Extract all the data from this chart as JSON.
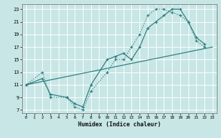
{
  "background_color": "#c8e6e6",
  "grid_color": "#ffffff",
  "line_color": "#2e7d7d",
  "xlabel": "Humidex (Indice chaleur)",
  "xlim": [
    -0.5,
    23.5
  ],
  "ylim": [
    6.5,
    23.8
  ],
  "xticks": [
    0,
    1,
    2,
    3,
    4,
    5,
    6,
    7,
    8,
    9,
    10,
    11,
    12,
    13,
    14,
    15,
    16,
    17,
    18,
    19,
    20,
    21,
    22,
    23
  ],
  "yticks": [
    7,
    9,
    11,
    13,
    15,
    17,
    19,
    21,
    23
  ],
  "line1_x": [
    0,
    2,
    3,
    5,
    6,
    7,
    8,
    10,
    11,
    12,
    13,
    14,
    15,
    16,
    17,
    18,
    19,
    20,
    21,
    22
  ],
  "line1_y": [
    11,
    13,
    9,
    9,
    7.5,
    7,
    10,
    13,
    15,
    15,
    17,
    19,
    22,
    23,
    23,
    22.5,
    22,
    21,
    18,
    17
  ],
  "line2_x": [
    0,
    2,
    3,
    5,
    6,
    7,
    8,
    10,
    11,
    12,
    13,
    14,
    15,
    16,
    17,
    18,
    19,
    20,
    21,
    22
  ],
  "line2_y": [
    11,
    12,
    9.5,
    9,
    8,
    7.5,
    11,
    15,
    15.5,
    16,
    15,
    17,
    20,
    21,
    22,
    23,
    23,
    21,
    18.5,
    17.5
  ],
  "line3_x": [
    0,
    23
  ],
  "line3_y": [
    11,
    17
  ]
}
